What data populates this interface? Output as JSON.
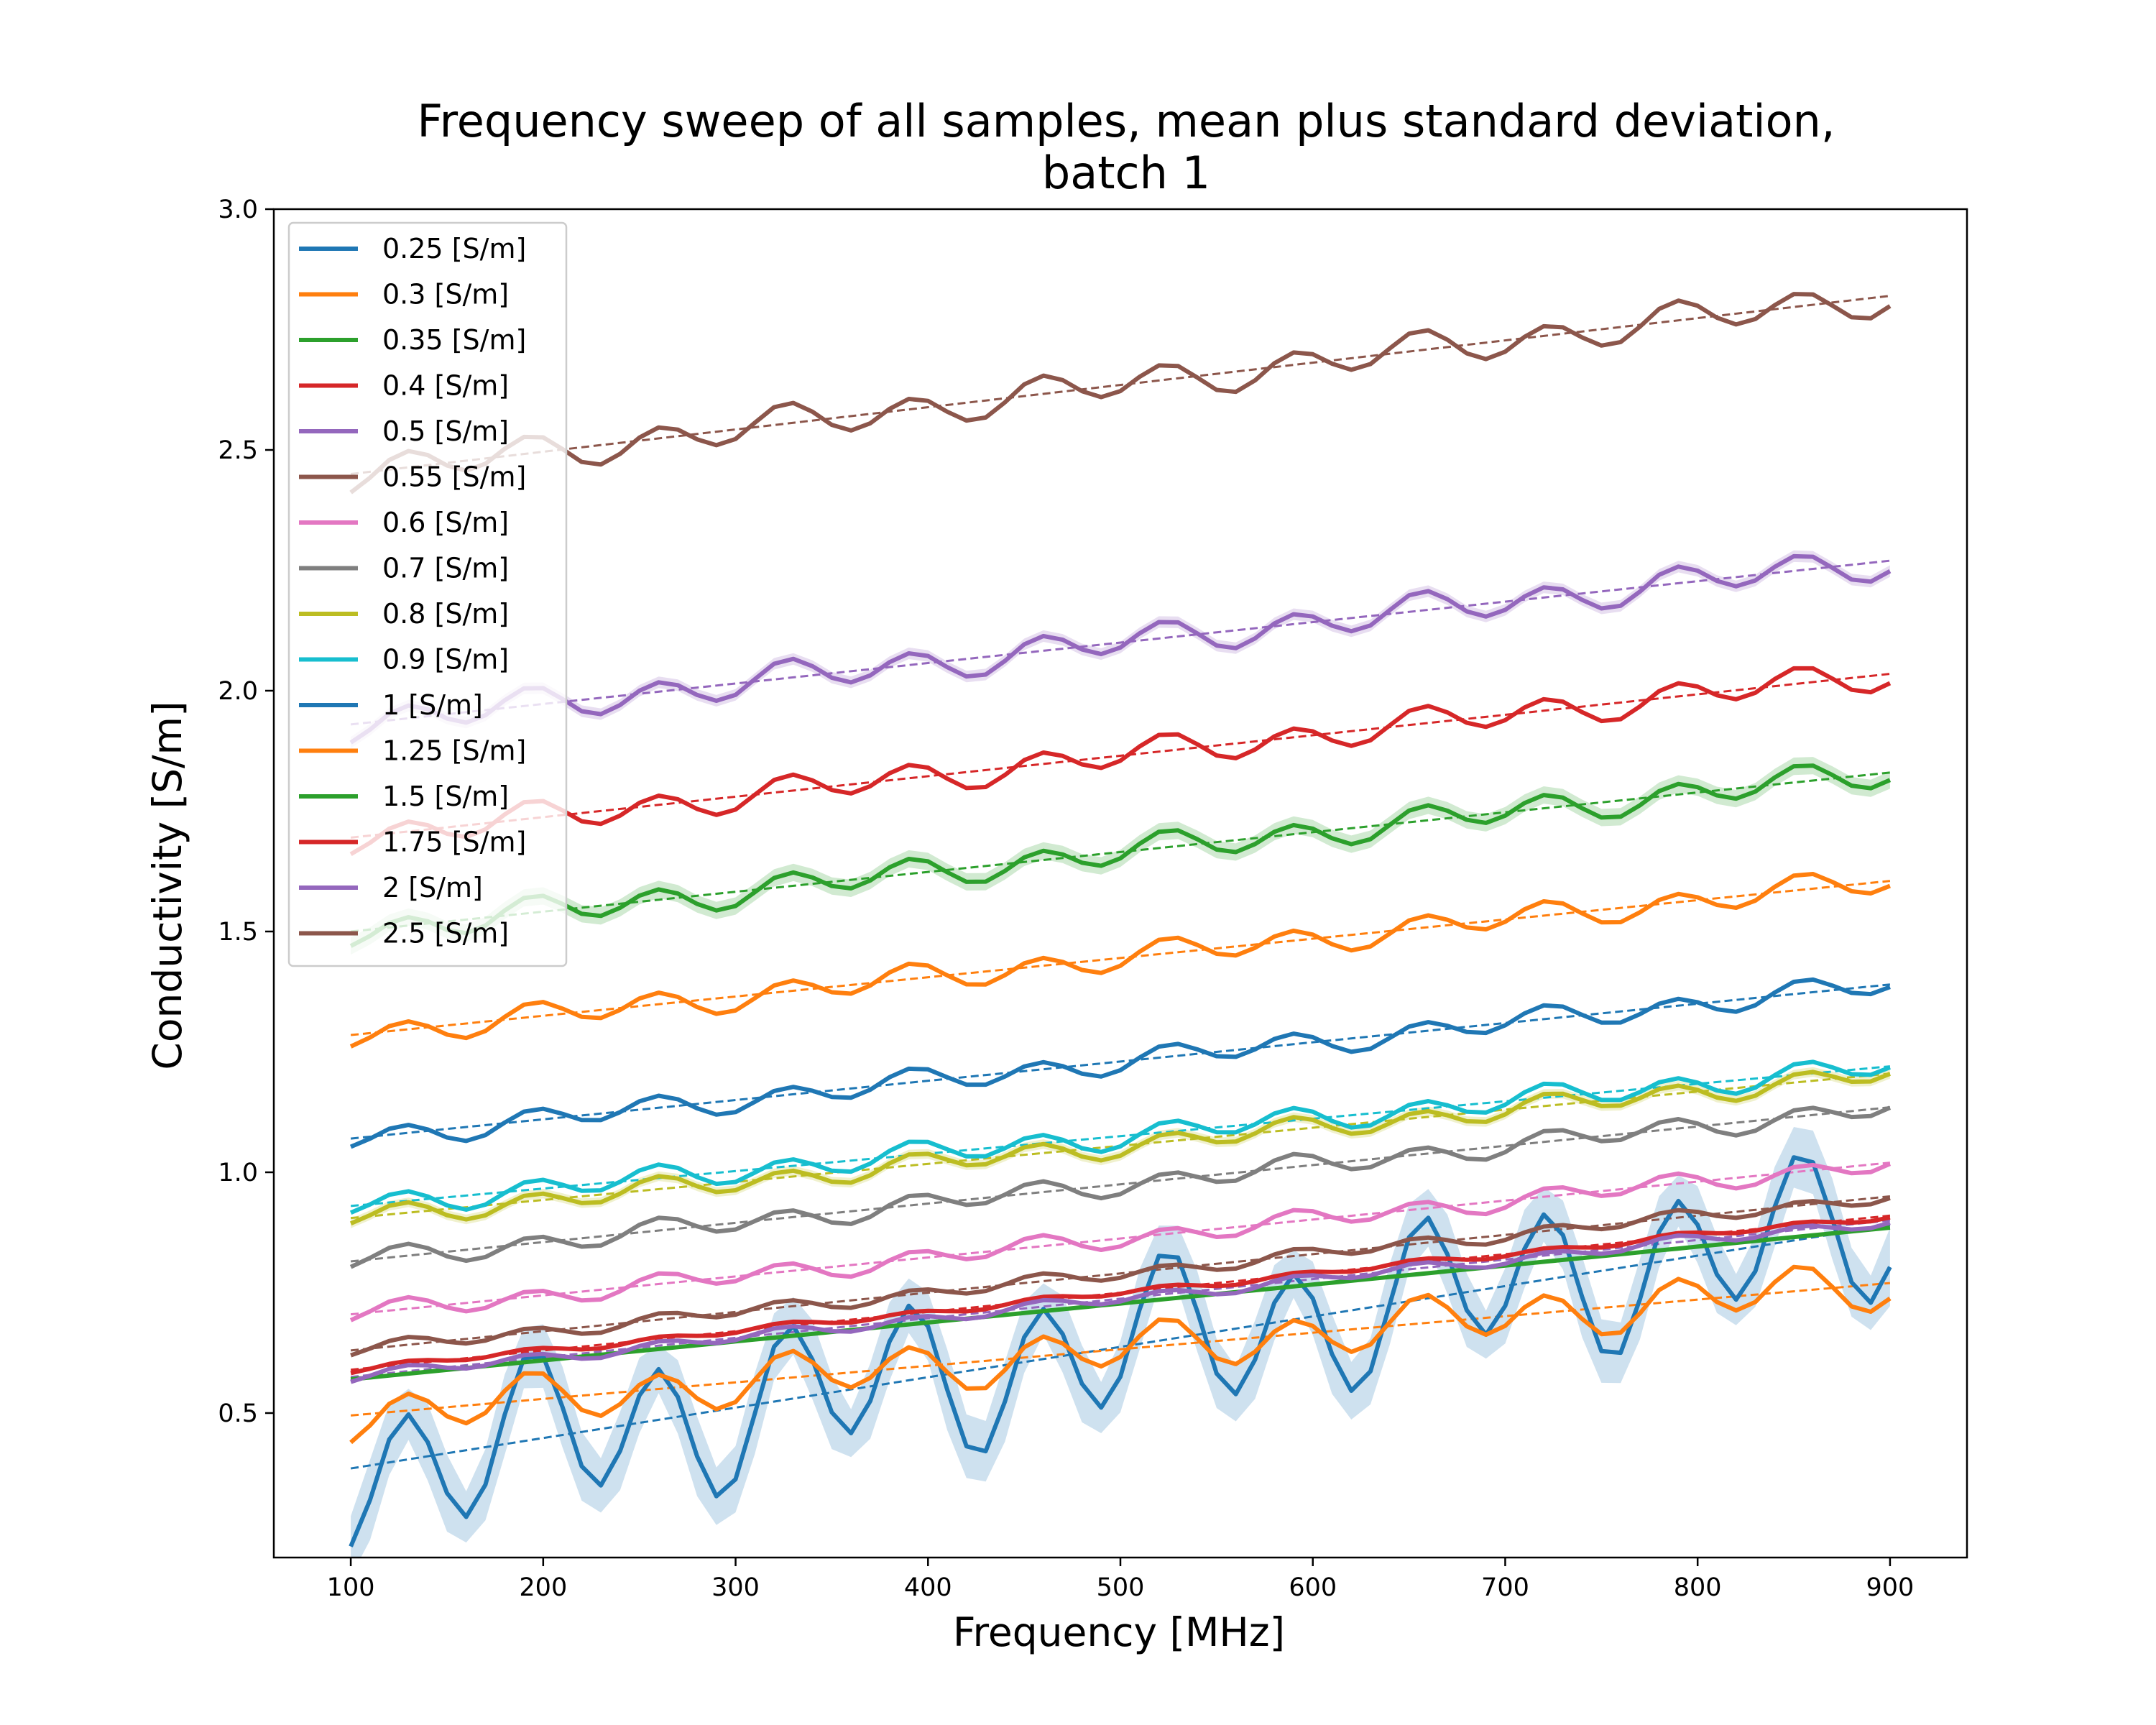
{
  "chart_data": {
    "type": "line",
    "title": "Frequency sweep of all samples, mean plus standard deviation,",
    "title_line2": "batch 1",
    "xlabel": "Frequency [MHz]",
    "ylabel": "Conductivity [S/m]",
    "xlim": [
      60,
      940
    ],
    "ylim": [
      0.2,
      3.0
    ],
    "xticks": [
      100,
      200,
      300,
      400,
      500,
      600,
      700,
      800,
      900
    ],
    "yticks": [
      0.5,
      1.0,
      1.5,
      2.0,
      2.5,
      3.0
    ],
    "ytick_labels": [
      "0.5",
      "1.0",
      "1.5",
      "2.0",
      "2.5",
      "3.0"
    ],
    "grid": false,
    "legend_position": "top-left",
    "frequency_range": [
      100,
      900
    ],
    "frequency_step": 10,
    "series_note_keys": [
      "name",
      "color",
      "fit_start",
      "fit_end",
      "ripple_amplitude",
      "ripple_period",
      "std_band"
    ],
    "series": [
      {
        "name": "0.25 [S/m]",
        "color": "#1f77b4",
        "fit_start": 0.385,
        "fit_end": 0.89,
        "ripple_amplitude": 0.14,
        "ripple_period": 66,
        "std_band": 0.06
      },
      {
        "name": "0.3 [S/m]",
        "color": "#ff7f0e",
        "fit_start": 0.495,
        "fit_end": 0.77,
        "ripple_amplitude": 0.045,
        "ripple_period": 66,
        "std_band": 0.0
      },
      {
        "name": "0.35 [S/m]",
        "color": "#2ca02c",
        "fit_start": 0.57,
        "fit_end": 0.885,
        "ripple_amplitude": 0.0,
        "ripple_period": 66,
        "std_band": 0.0
      },
      {
        "name": "0.4 [S/m]",
        "color": "#d62728",
        "fit_start": 0.59,
        "fit_end": 0.91,
        "ripple_amplitude": 0.006,
        "ripple_period": 66,
        "std_band": 0.0
      },
      {
        "name": "0.5 [S/m]",
        "color": "#9467bd",
        "fit_start": 0.575,
        "fit_end": 0.9,
        "ripple_amplitude": 0.01,
        "ripple_period": 66,
        "std_band": 0.0
      },
      {
        "name": "0.55 [S/m]",
        "color": "#8c564b",
        "fit_start": 0.63,
        "fit_end": 0.95,
        "ripple_amplitude": 0.012,
        "ripple_period": 66,
        "std_band": 0.0
      },
      {
        "name": "0.6 [S/m]",
        "color": "#e377c2",
        "fit_start": 0.705,
        "fit_end": 1.02,
        "ripple_amplitude": 0.018,
        "ripple_period": 66,
        "std_band": 0.0
      },
      {
        "name": "0.7 [S/m]",
        "color": "#7f7f7f",
        "fit_start": 0.815,
        "fit_end": 1.135,
        "ripple_amplitude": 0.02,
        "ripple_period": 66,
        "std_band": 0.0
      },
      {
        "name": "0.8 [S/m]",
        "color": "#bcbd22",
        "fit_start": 0.905,
        "fit_end": 1.205,
        "ripple_amplitude": 0.02,
        "ripple_period": 66,
        "std_band": 0.01
      },
      {
        "name": "0.9 [S/m]",
        "color": "#17becf",
        "fit_start": 0.93,
        "fit_end": 1.22,
        "ripple_amplitude": 0.022,
        "ripple_period": 66,
        "std_band": 0.0
      },
      {
        "name": "1 [S/m]",
        "color": "#1f77b4",
        "fit_start": 1.07,
        "fit_end": 1.39,
        "ripple_amplitude": 0.022,
        "ripple_period": 66,
        "std_band": 0.0
      },
      {
        "name": "1.25 [S/m]",
        "color": "#ff7f0e",
        "fit_start": 1.285,
        "fit_end": 1.605,
        "ripple_amplitude": 0.025,
        "ripple_period": 66,
        "std_band": 0.0
      },
      {
        "name": "1.5 [S/m]",
        "color": "#2ca02c",
        "fit_start": 1.5,
        "fit_end": 1.83,
        "ripple_amplitude": 0.027,
        "ripple_period": 66,
        "std_band": 0.018
      },
      {
        "name": "1.75 [S/m]",
        "color": "#d62728",
        "fit_start": 1.695,
        "fit_end": 2.035,
        "ripple_amplitude": 0.028,
        "ripple_period": 66,
        "std_band": 0.0
      },
      {
        "name": "2 [S/m]",
        "color": "#9467bd",
        "fit_start": 1.93,
        "fit_end": 2.27,
        "ripple_amplitude": 0.03,
        "ripple_period": 66,
        "std_band": 0.012
      },
      {
        "name": "2.5 [S/m]",
        "color": "#8c564b",
        "fit_start": 2.45,
        "fit_end": 2.82,
        "ripple_amplitude": 0.032,
        "ripple_period": 66,
        "std_band": 0.0
      }
    ]
  }
}
